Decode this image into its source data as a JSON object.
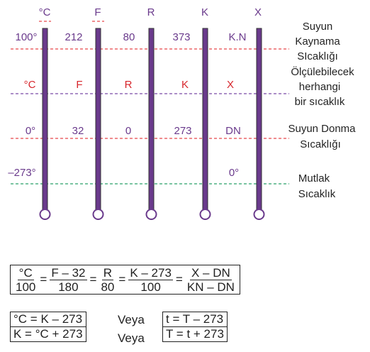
{
  "scales": {
    "headers": [
      "°C",
      "F",
      "R",
      "K",
      "X"
    ],
    "boiling": [
      "100°",
      "212",
      "80",
      "373",
      "K.N"
    ],
    "measurable": [
      "°C",
      "F",
      "R",
      "K",
      "X"
    ],
    "freezing": [
      "0°",
      "32",
      "0",
      "273",
      "DN"
    ],
    "absolute": [
      "–273°",
      "0°"
    ]
  },
  "labels": {
    "boiling": [
      "Suyun",
      "Kaynama",
      "SIcaklığı"
    ],
    "measurable": [
      "Ölçülebilecek",
      "herhangi",
      "bir sıcaklık"
    ],
    "freezing": [
      "Suyun Donma",
      "Sıcaklığı"
    ],
    "absolute": [
      "Mutlak",
      "Sıcaklık"
    ]
  },
  "formula": {
    "fractions": [
      {
        "num": "°C",
        "den": "100"
      },
      {
        "num": "F – 32",
        "den": "180"
      },
      {
        "num": "R",
        "den": "80"
      },
      {
        "num": "K – 273",
        "den": "100"
      },
      {
        "num": "X – DN",
        "den": "KN – DN"
      }
    ],
    "equals": "="
  },
  "relations": {
    "left": [
      "°C = K – 273",
      "K = °C + 273"
    ],
    "veya": [
      "Veya",
      "Veya"
    ],
    "right": [
      "t = T – 273",
      "T = t + 273"
    ]
  },
  "colors": {
    "thermometer": "#6a3a8c",
    "boiling_line": "#e8484a",
    "measurable_line": "#7a4aa8",
    "freezing_line": "#e8484a",
    "absolute_line": "#2aa06a"
  }
}
